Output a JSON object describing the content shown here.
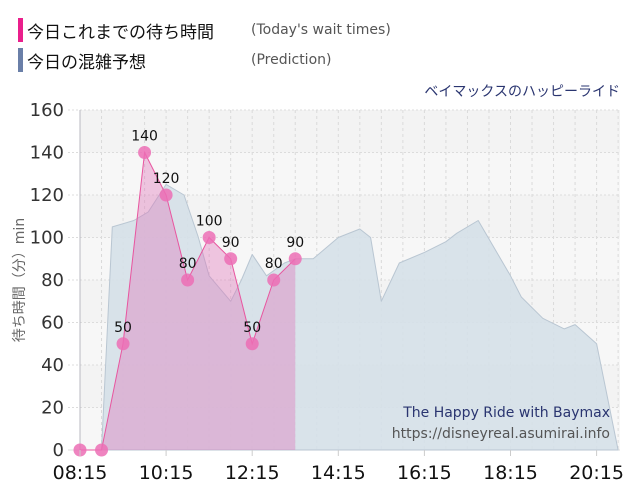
{
  "legend": {
    "actual": {
      "label_jp": "今日これまでの待ち時間",
      "label_en": "(Today's wait times)",
      "color": "#ea1f8c"
    },
    "prediction": {
      "label_jp": "今日の混雑予想",
      "label_en": "(Prediction)",
      "color": "#6a7fa8"
    }
  },
  "subtitle": "ベイマックスのハッピーライド",
  "watermark": {
    "title": "The Happy Ride with Baymax",
    "url": "https://disneyreal.asumirai.info"
  },
  "y_axis_label": "待ち時間（分）min",
  "chart_data": {
    "type": "area",
    "title": "ベイマックスのハッピーライド",
    "xlabel": "",
    "ylabel": "待ち時間（分）min",
    "ylim": [
      0,
      160
    ],
    "yticks": [
      0,
      20,
      40,
      60,
      80,
      100,
      120,
      140,
      160
    ],
    "xticks": [
      "08:15",
      "10:15",
      "12:15",
      "14:15",
      "16:15",
      "18:15",
      "20:15"
    ],
    "grid": true,
    "legend_position": "top-left",
    "series": [
      {
        "name": "今日これまでの待ち時間 (Today's wait times)",
        "type": "area-line-markers",
        "x": [
          "08:15",
          "08:45",
          "09:15",
          "09:45",
          "10:15",
          "10:45",
          "11:15",
          "11:45",
          "12:15",
          "12:45",
          "13:15"
        ],
        "values": [
          0,
          0,
          50,
          140,
          120,
          80,
          100,
          90,
          50,
          80,
          90
        ]
      },
      {
        "name": "今日の混雑予想 (Prediction)",
        "type": "area",
        "x": [
          "08:15",
          "08:45",
          "09:00",
          "09:30",
          "09:50",
          "10:15",
          "10:40",
          "11:00",
          "11:15",
          "11:45",
          "12:00",
          "12:15",
          "12:35",
          "13:00",
          "13:15",
          "13:40",
          "14:15",
          "14:45",
          "15:00",
          "15:15",
          "15:40",
          "16:15",
          "16:45",
          "17:00",
          "17:30",
          "18:15",
          "18:30",
          "19:00",
          "19:30",
          "19:45",
          "20:15",
          "20:45"
        ],
        "values": [
          0,
          0,
          105,
          108,
          112,
          125,
          120,
          100,
          82,
          70,
          80,
          92,
          82,
          88,
          90,
          90,
          100,
          104,
          100,
          70,
          88,
          93,
          98,
          102,
          108,
          82,
          72,
          62,
          57,
          59,
          50,
          0
        ]
      }
    ]
  }
}
